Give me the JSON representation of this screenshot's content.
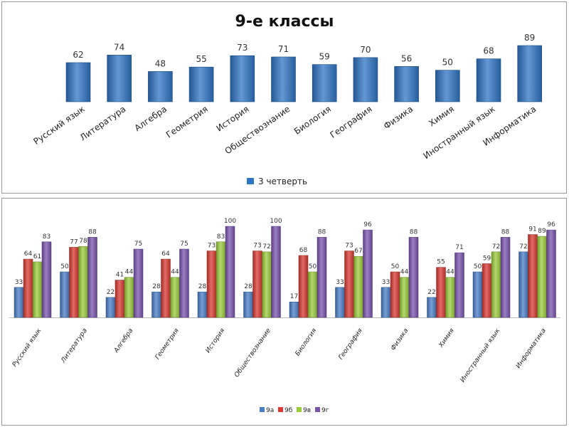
{
  "chart_data": [
    {
      "type": "bar",
      "title": "9-е классы",
      "categories": [
        "Русский язык",
        "Литература",
        "Алгебра",
        "Геометрия",
        "История",
        "Обществознание",
        "Биология",
        "География",
        "Физика",
        "Химия",
        "Иностранный язык",
        "Информатика"
      ],
      "series": [
        {
          "name": "3 четверть",
          "color": "#2f75c6",
          "values": [
            62,
            74,
            48,
            55,
            73,
            71,
            59,
            70,
            56,
            50,
            68,
            89
          ]
        }
      ],
      "legend_position": "bottom",
      "grid": false,
      "data_labels": true
    },
    {
      "type": "bar",
      "title": "",
      "categories": [
        "Русский язык",
        "Литература",
        "Алгебра",
        "Геометрия",
        "История",
        "Обществознание",
        "Биология",
        "География",
        "Физика",
        "Химия",
        "Иностранный язык",
        "Информатика"
      ],
      "series": [
        {
          "name": "9а",
          "color": "#4a7fc8",
          "values": [
            33,
            50,
            22,
            28,
            28,
            28,
            17,
            33,
            33,
            22,
            50,
            72
          ]
        },
        {
          "name": "9б",
          "color": "#d93a33",
          "values": [
            64,
            77,
            41,
            64,
            73,
            73,
            68,
            73,
            50,
            55,
            59,
            91
          ]
        },
        {
          "name": "9в",
          "color": "#9bcc3c",
          "values": [
            61,
            78,
            44,
            44,
            83,
            72,
            50,
            67,
            44,
            44,
            72,
            89
          ]
        },
        {
          "name": "9г",
          "color": "#7a55b0",
          "values": [
            83,
            88,
            75,
            75,
            100,
            100,
            88,
            96,
            88,
            71,
            88,
            96
          ]
        }
      ],
      "legend_position": "bottom",
      "grid": false,
      "data_labels": true
    }
  ]
}
